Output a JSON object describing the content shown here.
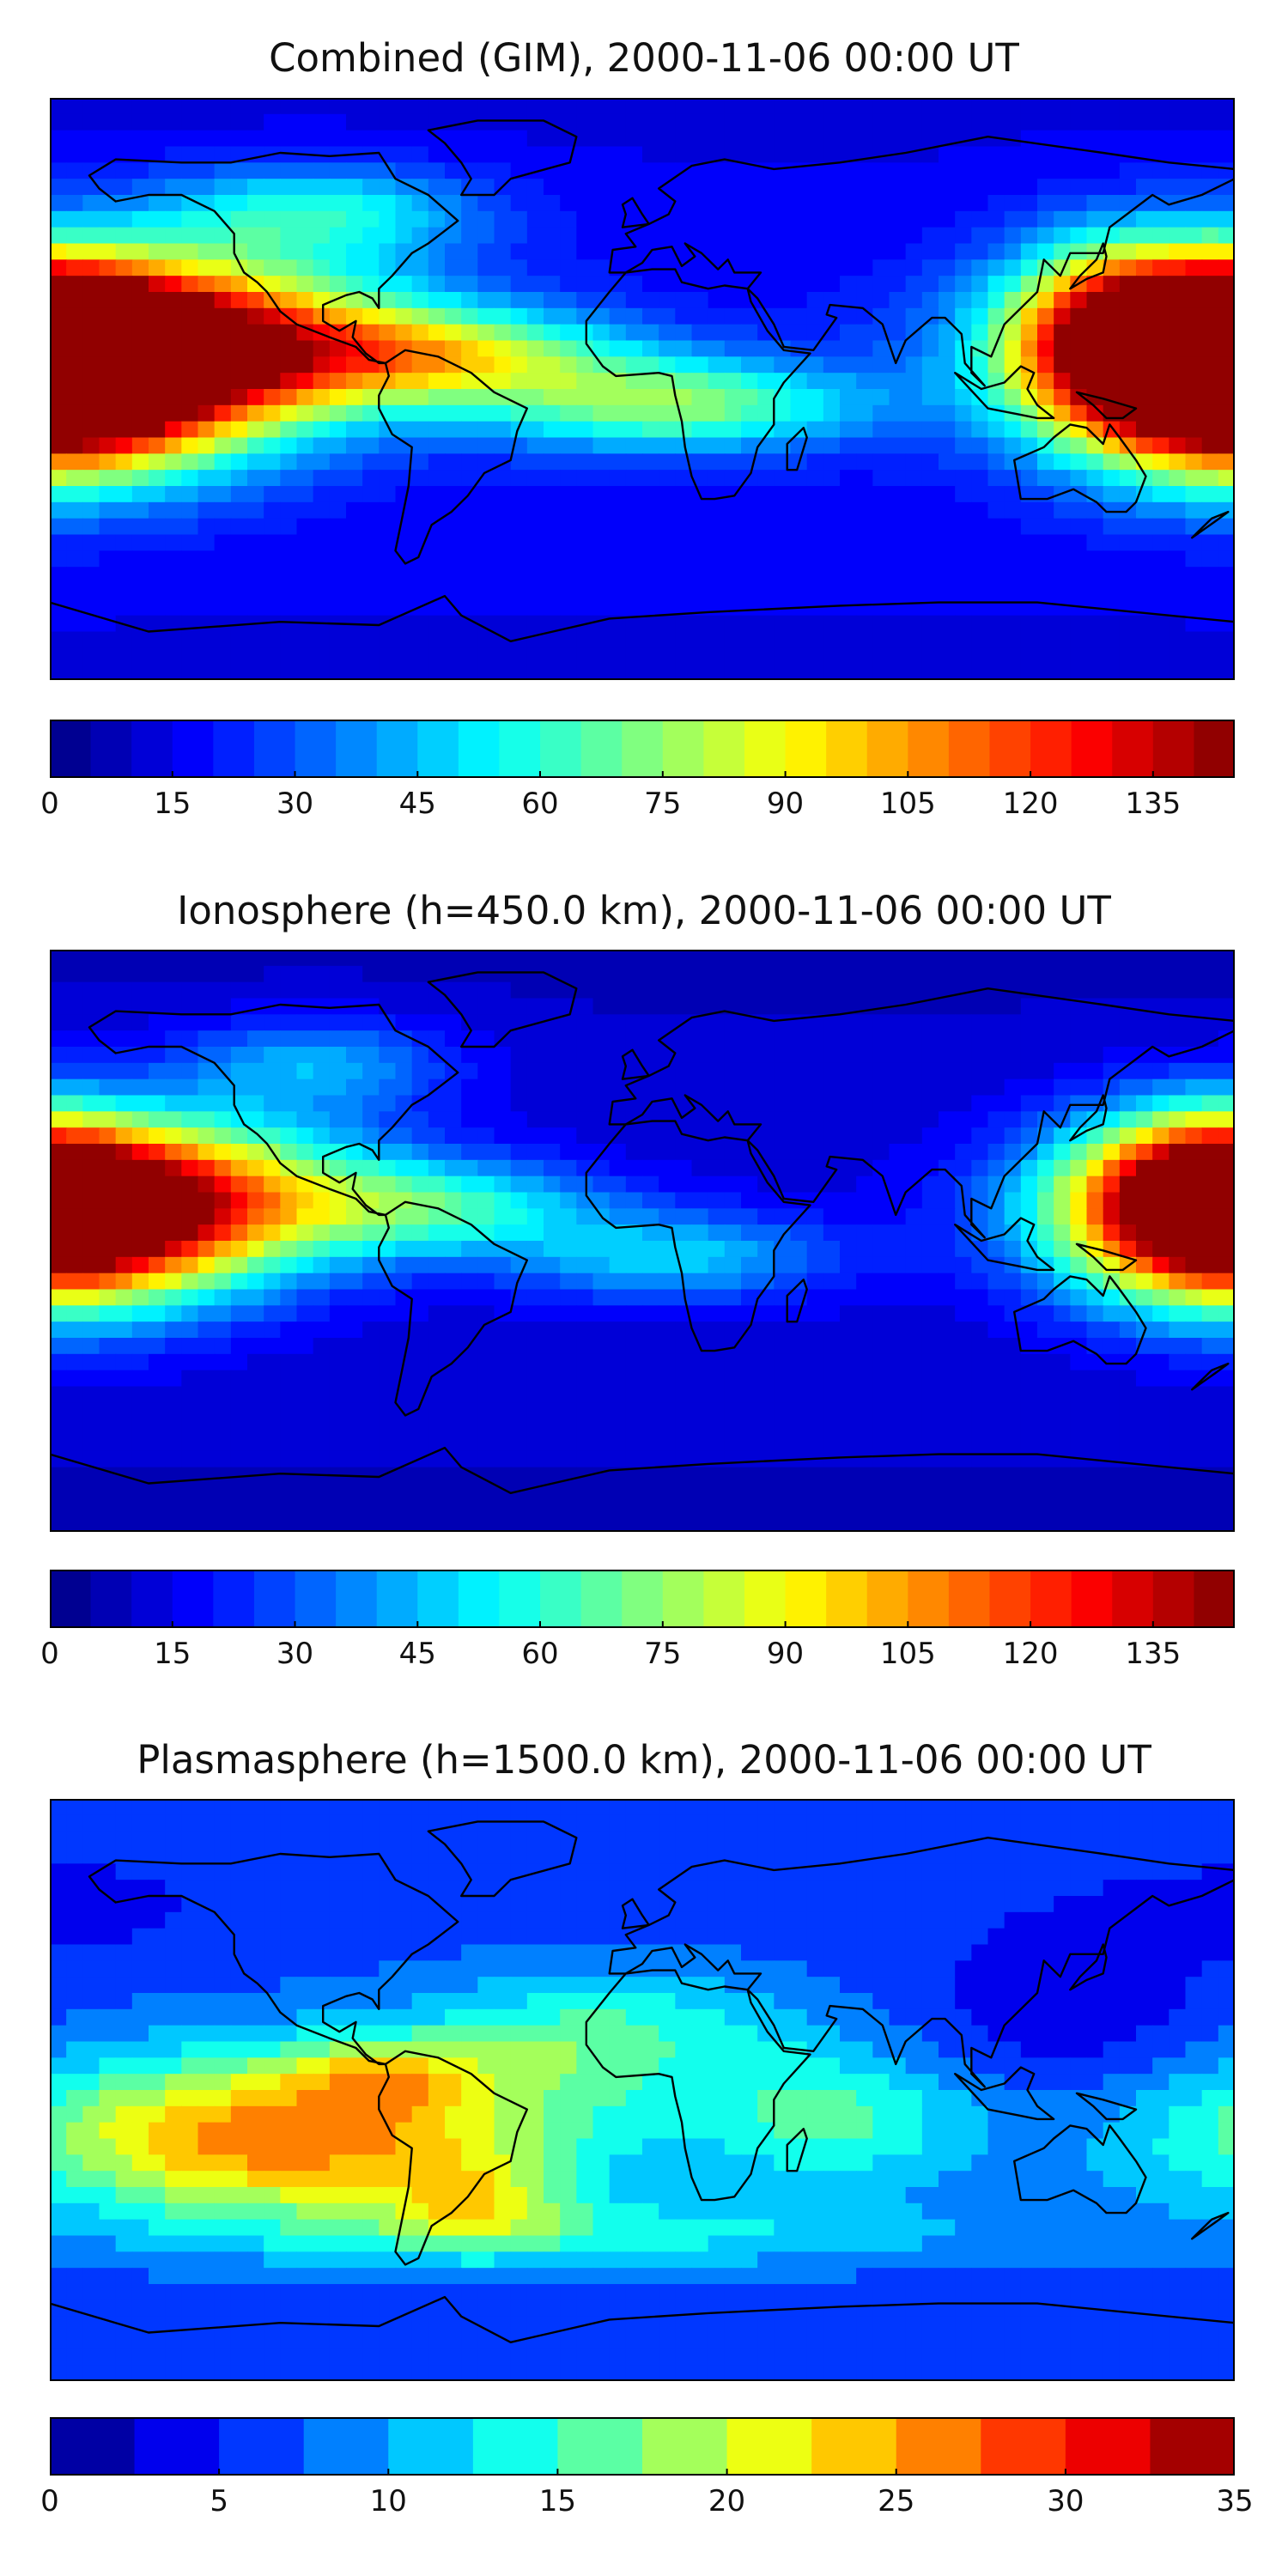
{
  "chart_data": [
    {
      "type": "heatmap",
      "title": "Combined (GIM), 2000-11-06 00:00 UT",
      "colorbar": {
        "min": 0,
        "max": 145,
        "step": 5,
        "ticks": [
          0,
          15,
          30,
          45,
          60,
          75,
          90,
          105,
          120,
          135
        ],
        "tick_labels": [
          "0",
          "15",
          "30",
          "45",
          "60",
          "75",
          "90",
          "105",
          "120",
          "135"
        ]
      },
      "background_value": 18,
      "blobs": [
        {
          "lon": -155,
          "lat": 15,
          "value": 125,
          "spread_lon": 55,
          "spread_lat": 18
        },
        {
          "lon": -175,
          "lat": 0,
          "value": 105,
          "spread_lon": 40,
          "spread_lat": 20
        },
        {
          "lon": 175,
          "lat": 10,
          "value": 90,
          "spread_lon": 25,
          "spread_lat": 20
        },
        {
          "lon": -60,
          "lat": 10,
          "value": 55,
          "spread_lon": 40,
          "spread_lat": 10
        },
        {
          "lon": 10,
          "lat": -5,
          "value": 55,
          "spread_lon": 40,
          "spread_lat": 10
        },
        {
          "lon": 140,
          "lat": 20,
          "value": 50,
          "spread_lon": 20,
          "spread_lat": 20
        },
        {
          "lon": -100,
          "lat": 55,
          "value": 40,
          "spread_lon": 35,
          "spread_lat": 10
        }
      ]
    },
    {
      "type": "heatmap",
      "title": "Ionosphere  (h=450.0 km), 2000-11-06 00:00 UT",
      "colorbar": {
        "min": 0,
        "max": 145,
        "step": 5,
        "ticks": [
          0,
          15,
          30,
          45,
          60,
          75,
          90,
          105,
          120,
          135
        ],
        "tick_labels": [
          "0",
          "15",
          "30",
          "45",
          "60",
          "75",
          "90",
          "105",
          "120",
          "135"
        ]
      },
      "background_value": 12,
      "blobs": [
        {
          "lon": -155,
          "lat": 15,
          "value": 100,
          "spread_lon": 50,
          "spread_lat": 17
        },
        {
          "lon": -175,
          "lat": 0,
          "value": 80,
          "spread_lon": 38,
          "spread_lat": 18
        },
        {
          "lon": 170,
          "lat": 15,
          "value": 75,
          "spread_lon": 25,
          "spread_lat": 18
        },
        {
          "lon": -60,
          "lat": 10,
          "value": 40,
          "spread_lon": 35,
          "spread_lat": 10
        },
        {
          "lon": 10,
          "lat": -5,
          "value": 35,
          "spread_lon": 35,
          "spread_lat": 10
        },
        {
          "lon": -100,
          "lat": 55,
          "value": 30,
          "spread_lon": 30,
          "spread_lat": 10
        }
      ]
    },
    {
      "type": "heatmap",
      "title": "Plasmasphere (h=1500.0 km), 2000-11-06 00:00 UT",
      "colorbar": {
        "min": 0,
        "max": 35,
        "step": 2.5,
        "ticks": [
          0,
          5,
          10,
          15,
          20,
          25,
          30,
          35
        ],
        "tick_labels": [
          "0",
          "5",
          "10",
          "15",
          "20",
          "25",
          "30",
          "35"
        ]
      },
      "background_value": 7,
      "blobs": [
        {
          "lon": -110,
          "lat": -15,
          "value": 20,
          "spread_lon": 60,
          "spread_lat": 18
        },
        {
          "lon": -80,
          "lat": 5,
          "value": 8,
          "spread_lon": 20,
          "spread_lat": 8
        },
        {
          "lon": -50,
          "lat": -35,
          "value": 8,
          "spread_lon": 20,
          "spread_lat": 10
        },
        {
          "lon": -10,
          "lat": 15,
          "value": 9,
          "spread_lon": 40,
          "spread_lat": 15
        },
        {
          "lon": 60,
          "lat": -10,
          "value": 8,
          "spread_lon": 30,
          "spread_lat": 15
        },
        {
          "lon": 0,
          "lat": -45,
          "value": 6,
          "spread_lon": 80,
          "spread_lat": 8
        },
        {
          "lon": 130,
          "lat": 25,
          "value": -4,
          "spread_lon": 30,
          "spread_lat": 20
        },
        {
          "lon": 10,
          "lat": 5,
          "value": -2,
          "spread_lon": 15,
          "spread_lat": 10
        },
        {
          "lon": -170,
          "lat": 55,
          "value": -2,
          "spread_lon": 30,
          "spread_lat": 10
        },
        {
          "lon": -175,
          "lat": -25,
          "value": -1,
          "spread_lon": 15,
          "spread_lat": 10
        }
      ]
    }
  ],
  "colors": {
    "coastline": "#000000"
  }
}
